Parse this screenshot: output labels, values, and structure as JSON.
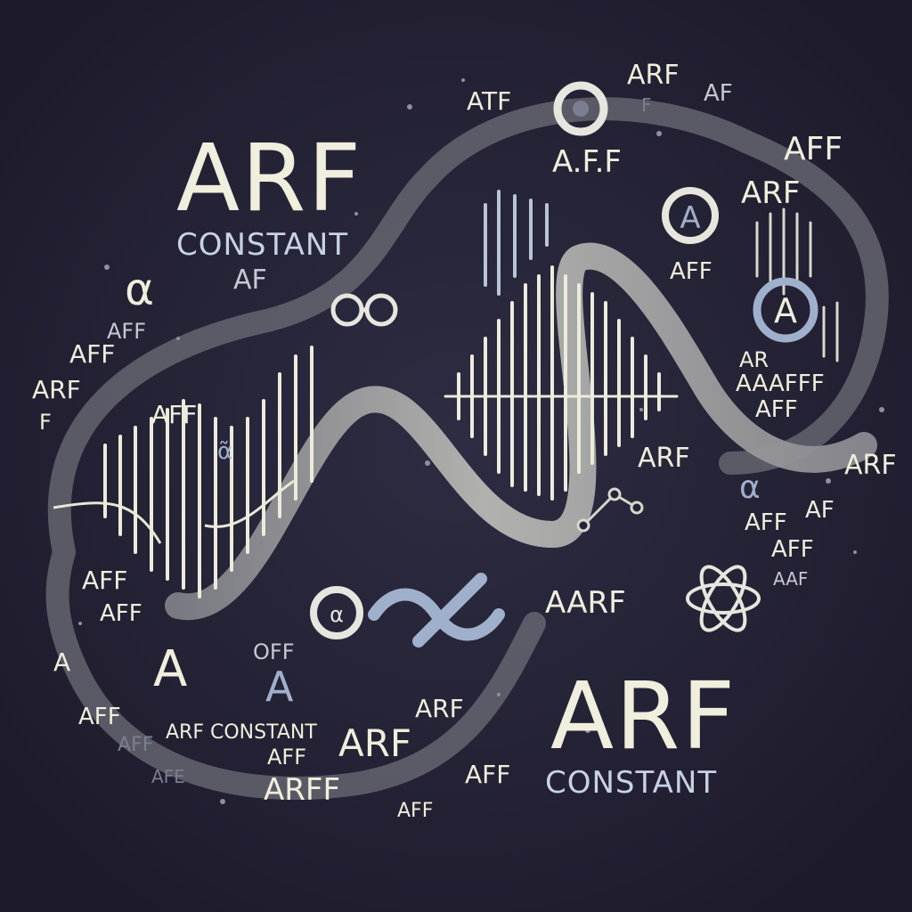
{
  "headings": {
    "top_title": "ARF",
    "top_subtitle": "CONSTANT",
    "bottom_title": "ARF",
    "bottom_subtitle": "CONSTANT"
  },
  "floating_words": [
    "ARF",
    "AFF",
    "ATF",
    "AF",
    "A.F.F",
    "AAAFFF",
    "ARF CONSTANT",
    "ARFF",
    "AARF",
    "OFF",
    "AFE",
    "AAF",
    "AR",
    "A",
    "F",
    "α",
    "α̃"
  ],
  "colors": {
    "background": "#242235",
    "text_light": "#f0eedc",
    "accent_blue": "#9fb0cc",
    "wave_gray": "#8e8e92"
  },
  "icons": [
    "wave-ribbon",
    "sound-wave",
    "ring-glyph",
    "atom-glyph"
  ]
}
